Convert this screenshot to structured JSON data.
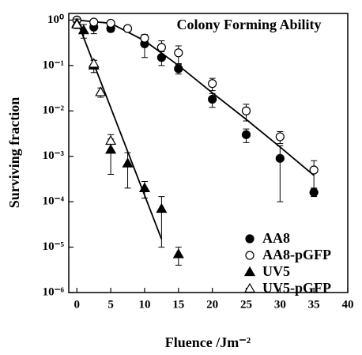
{
  "chart_data": {
    "type": "scatter",
    "title": "Colony Forming Ability",
    "x_label": "Fluence /Jm⁻²",
    "y_label": "Surviving fraction",
    "log_y": true,
    "legend_position": "lower right",
    "xlim": [
      -1.2,
      40
    ],
    "ylim": [
      1e-06,
      1.4
    ],
    "xticks": [
      0,
      5,
      10,
      15,
      20,
      25,
      30,
      35,
      40
    ],
    "yticks": [
      {
        "value": 1,
        "label": "10⁰"
      },
      {
        "value": 0.1,
        "label": "10⁻¹"
      },
      {
        "value": 0.01,
        "label": "10⁻²"
      },
      {
        "value": 0.001,
        "label": "10⁻³"
      },
      {
        "value": 0.0001,
        "label": "10⁻⁴"
      },
      {
        "value": 1e-05,
        "label": "10⁻⁵"
      },
      {
        "value": 1e-06,
        "label": "10⁻⁶"
      }
    ],
    "series": [
      {
        "name": "AA8",
        "marker": "circle",
        "filled": true,
        "color": "#000000",
        "x": [
          0,
          2.5,
          5,
          10,
          12.5,
          15,
          20,
          25,
          30,
          35
        ],
        "values": [
          1.0,
          0.7,
          0.65,
          0.3,
          0.15,
          0.085,
          0.018,
          0.003,
          0.0009,
          0.00016
        ],
        "errors": [
          0.1,
          0.2,
          0.1,
          0.15,
          0.05,
          0.02,
          0.006,
          0.001,
          0.0008,
          3e-05
        ]
      },
      {
        "name": "AA8-pGFP",
        "marker": "circle",
        "filled": false,
        "color": "#000000",
        "x": [
          0,
          2.5,
          5,
          7.5,
          10,
          12.5,
          15,
          20,
          25,
          30,
          35
        ],
        "values": [
          1.0,
          0.9,
          0.85,
          0.65,
          0.4,
          0.25,
          0.19,
          0.04,
          0.01,
          0.0027,
          0.0005
        ],
        "errors": [
          0.1,
          0.1,
          0.1,
          0.1,
          0.08,
          0.1,
          0.08,
          0.012,
          0.004,
          0.0008,
          0.0003
        ]
      },
      {
        "name": "UV5",
        "marker": "triangle",
        "filled": true,
        "color": "#000000",
        "x": [
          0,
          1,
          2.5,
          5,
          7.5,
          10,
          12.5,
          15
        ],
        "values": [
          0.85,
          0.6,
          0.1,
          0.0014,
          0.0007,
          0.0002,
          7e-05,
          7e-06
        ],
        "errors": [
          0.2,
          0.2,
          0.03,
          0.001,
          0.0005,
          8e-05,
          6e-05,
          3e-06
        ]
      },
      {
        "name": "UV5-pGFP",
        "marker": "triangle",
        "filled": false,
        "color": "#000000",
        "x": [
          0,
          2.5,
          3.5,
          5
        ],
        "values": [
          0.8,
          0.11,
          0.026,
          0.0022
        ],
        "errors": [
          0.1,
          0.02,
          0.006,
          0.0008
        ]
      }
    ],
    "fit_lines": [
      {
        "color": "#000000",
        "x": [
          0,
          5,
          10,
          15,
          20,
          25,
          30,
          35
        ],
        "values": [
          1.0,
          0.85,
          0.35,
          0.1,
          0.025,
          0.0065,
          0.0016,
          0.00038
        ]
      },
      {
        "color": "#000000",
        "x": [
          0,
          12.5
        ],
        "values": [
          1.0,
          1.5e-05
        ]
      }
    ]
  }
}
